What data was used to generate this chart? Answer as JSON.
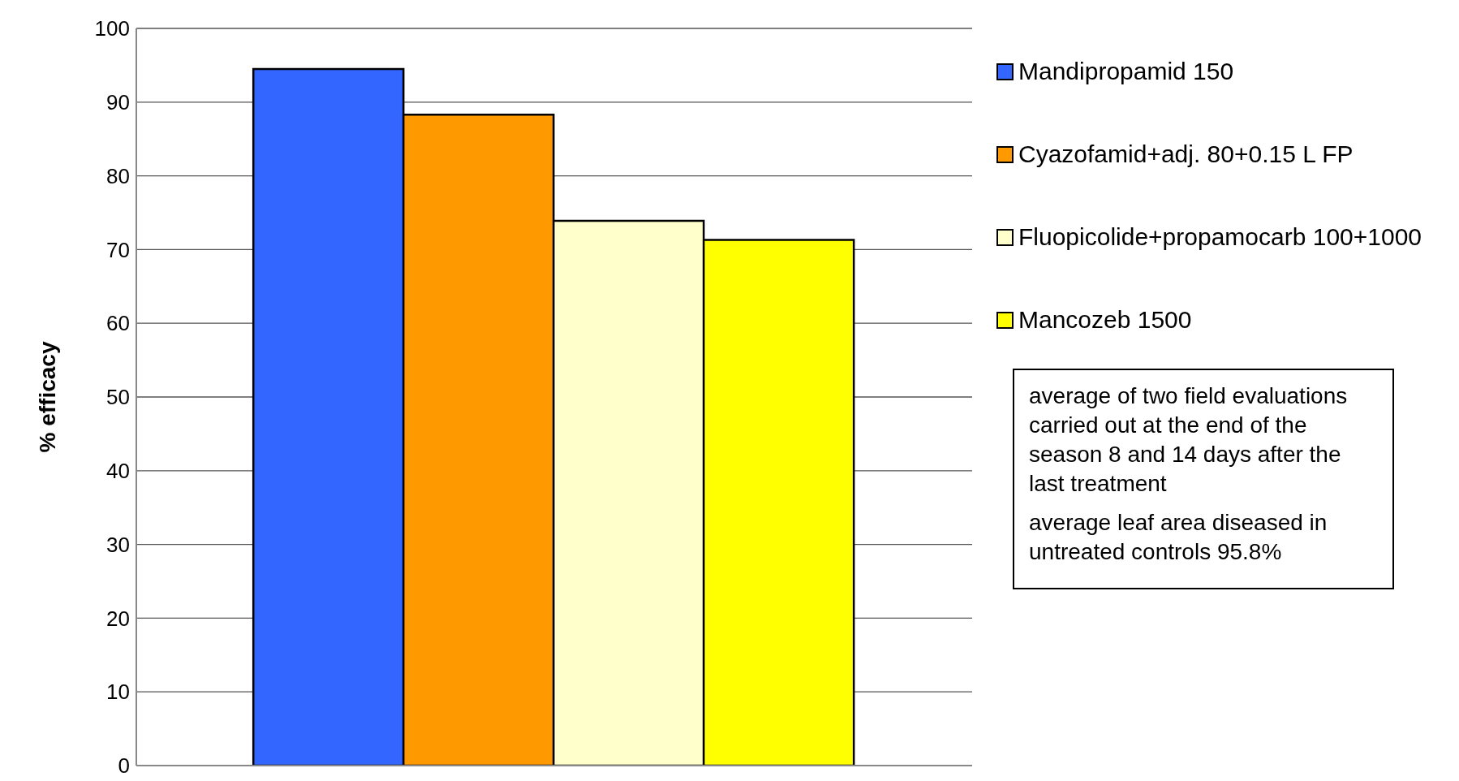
{
  "chart_data": {
    "type": "bar",
    "ylabel": "% efficacy",
    "categories": [
      null
    ],
    "series": [
      {
        "name": "Mandipropamid 150",
        "color": "#3366ff",
        "values": [
          94.5
        ]
      },
      {
        "name": "Cyazofamid+adj. 80+0.15 L FP",
        "color": "#ff9900",
        "values": [
          88.3
        ]
      },
      {
        "name": "Fluopicolide+propamocarb 100+1000",
        "color": "#ffffcc",
        "values": [
          73.9
        ]
      },
      {
        "name": "Mancozeb 1500",
        "color": "#ffff00",
        "values": [
          71.3
        ]
      }
    ],
    "ylim": [
      0,
      100
    ],
    "yticks": [
      0,
      10,
      20,
      30,
      40,
      50,
      60,
      70,
      80,
      90,
      100
    ],
    "grid": "y",
    "legend": "right",
    "annotations": [
      "average of two field evaluations carried out at the end of the season 8 and 14 days after the last treatment",
      "average leaf area diseased in untreated controls 95.8%"
    ]
  }
}
